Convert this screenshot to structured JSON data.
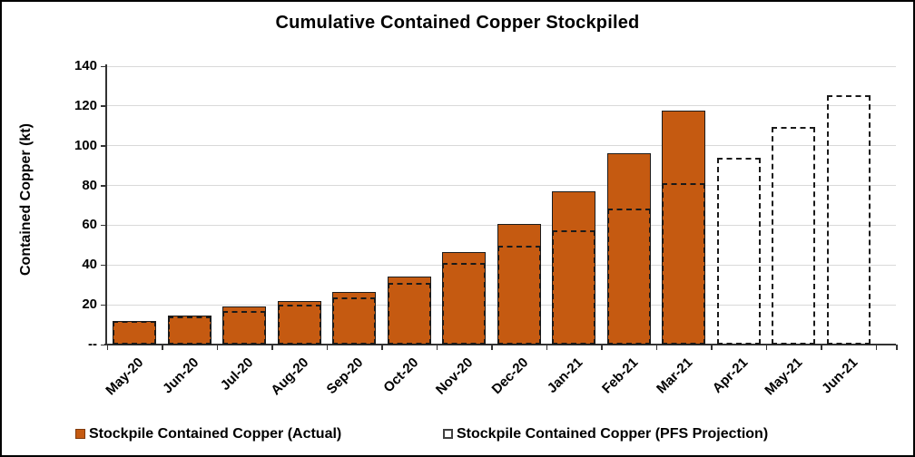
{
  "chart_data": {
    "type": "bar",
    "title": "Cumulative Contained Copper Stockpiled",
    "ylabel": "Contained Copper (kt)",
    "ylim": [
      0,
      140
    ],
    "ytick_step": 20,
    "ytick_labels_top_to_bottom": [
      "140",
      "120",
      "100",
      "80",
      "60",
      "40",
      "20",
      "--"
    ],
    "grid": "horizontal",
    "legend_position": "bottom",
    "categories": [
      "May-20",
      "Jun-20",
      "Jul-20",
      "Aug-20",
      "Sep-20",
      "Oct-20",
      "Nov-20",
      "Dec-20",
      "Jan-21",
      "Feb-21",
      "Mar-21",
      "Apr-21",
      "May-21",
      "Jun-21"
    ],
    "series": [
      {
        "name": "Stockpile Contained Copper (Actual)",
        "style": "filled-bar",
        "color": "#C55A11",
        "values": [
          12,
          14.5,
          19,
          22,
          26.5,
          34,
          46.5,
          60.5,
          77,
          96,
          117.5,
          null,
          null,
          null
        ]
      },
      {
        "name": "Stockpile Contained Copper (PFS Projection)",
        "style": "dashed-outline-bar",
        "color": "#1a1a1a",
        "values": [
          12,
          14,
          17,
          20,
          23.5,
          31,
          41,
          49.5,
          57.5,
          68.5,
          81,
          94,
          109.5,
          125.5
        ]
      }
    ]
  },
  "colors": {
    "bar_fill": "#C55A11",
    "bar_border": "#1c1c1c",
    "dashed_line": "#1a1a1a",
    "gridline": "#D9D9D9",
    "axis": "#333333"
  }
}
